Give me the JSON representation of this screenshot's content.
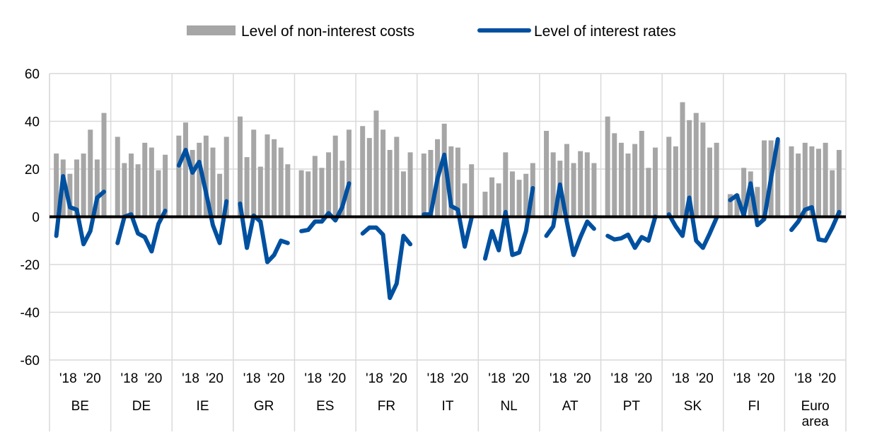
{
  "chart_data": {
    "type": "bar",
    "legend": {
      "placement": "top-center",
      "items": [
        {
          "label": "Level of non-interest costs",
          "kind": "bar",
          "color": "#a6a6a6"
        },
        {
          "label": "Level of interest rates",
          "kind": "line",
          "color": "#0050a0"
        }
      ]
    },
    "ylim": [
      -60,
      60
    ],
    "yticks": [
      60,
      40,
      20,
      0,
      -20,
      -40,
      -60
    ],
    "ytick_labels": [
      "60",
      "40",
      "20",
      "0",
      "-20",
      "-40",
      "-60"
    ],
    "grid": true,
    "year_labels": [
      "'18",
      "'20"
    ],
    "groups": [
      {
        "label": [
          "BE"
        ],
        "bars": [
          26.5,
          24,
          18,
          24,
          26.5,
          36.5,
          24,
          43.5
        ],
        "line": [
          -8,
          17,
          4,
          3,
          -11.5,
          -6,
          8,
          10.5
        ]
      },
      {
        "label": [
          "DE"
        ],
        "bars": [
          33.5,
          22.5,
          26.5,
          22,
          31,
          29,
          19.5,
          26
        ],
        "line": [
          -11,
          0,
          1,
          -7,
          -8.5,
          -14.5,
          -3,
          2.5
        ]
      },
      {
        "label": [
          "IE"
        ],
        "bars": [
          34,
          39.5,
          28,
          31,
          34,
          29,
          18,
          33.5
        ],
        "line": [
          21.5,
          28,
          18.5,
          23,
          10,
          -3.5,
          -11,
          6.5
        ]
      },
      {
        "label": [
          "GR"
        ],
        "bars": [
          42,
          25,
          36.5,
          21,
          34.5,
          32.5,
          29,
          22
        ],
        "line": [
          5.5,
          -13,
          0.5,
          -2,
          -19,
          -16,
          -10,
          -11
        ]
      },
      {
        "label": [
          "ES"
        ],
        "bars": [
          19.5,
          19,
          25.5,
          20.5,
          27,
          34,
          23.5,
          36.5
        ],
        "line": [
          -6,
          -5.5,
          -2,
          -2,
          1.5,
          -1.5,
          4,
          14
        ]
      },
      {
        "label": [
          "FR"
        ],
        "bars": [
          38,
          33,
          44.5,
          36.5,
          28,
          33.5,
          19,
          27
        ],
        "line": [
          -7,
          -4.5,
          -4.5,
          -7.5,
          -34,
          -28,
          -8,
          -11.5
        ]
      },
      {
        "label": [
          "IT"
        ],
        "bars": [
          26.5,
          28,
          32.5,
          39,
          29.5,
          29,
          14,
          22
        ],
        "line": [
          1,
          1,
          16,
          26,
          4.5,
          3,
          -12.5,
          -0.5
        ]
      },
      {
        "label": [
          "NL"
        ],
        "bars": [
          10.5,
          16.5,
          14,
          27,
          19,
          15.5,
          18,
          22.5
        ],
        "line": [
          -17.5,
          -6,
          -14,
          2,
          -16,
          -15,
          -6,
          12
        ]
      },
      {
        "label": [
          "AT"
        ],
        "bars": [
          36,
          27,
          23.5,
          30.5,
          22.5,
          27.5,
          27,
          22.5
        ],
        "line": [
          -8,
          -4,
          13.5,
          -2,
          -16,
          -8.5,
          -2,
          -5
        ]
      },
      {
        "label": [
          "PT"
        ],
        "bars": [
          42,
          35,
          31,
          26.5,
          30.5,
          36,
          20.5,
          29
        ],
        "line": [
          -8,
          -9.5,
          -9,
          -7.5,
          -13,
          -8.5,
          -10,
          0
        ]
      },
      {
        "label": [
          "SK"
        ],
        "bars": [
          33.5,
          29.5,
          48,
          40.5,
          43.5,
          39.5,
          29,
          31
        ],
        "line": [
          1,
          -4,
          -8,
          8,
          -10,
          -13,
          -7,
          -0.5
        ]
      },
      {
        "label": [
          "FI"
        ],
        "bars": [
          9.5,
          9.5,
          20.5,
          19,
          12.5,
          32,
          32,
          32
        ],
        "line": [
          7,
          9,
          0.5,
          14,
          -3.5,
          -1,
          16,
          32.5
        ]
      },
      {
        "label": [
          "Euro",
          "area"
        ],
        "bars": [
          29.5,
          26.5,
          31,
          29.5,
          28.5,
          31,
          19.5,
          28
        ],
        "line": [
          -5.5,
          -2,
          3,
          4,
          -9.5,
          -10,
          -4.5,
          2
        ]
      }
    ]
  }
}
